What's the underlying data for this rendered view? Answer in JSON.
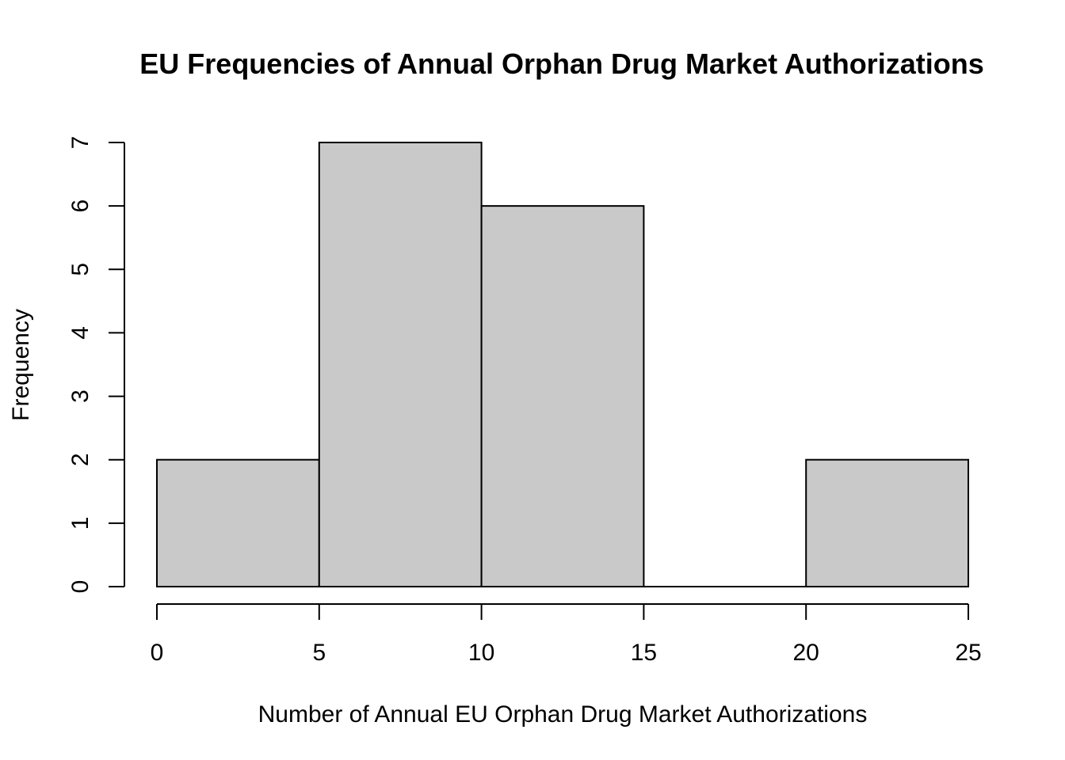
{
  "chart_data": {
    "type": "bar",
    "title": "EU Frequencies of Annual Orphan Drug Market Authorizations",
    "xlabel": "Number of Annual EU Orphan Drug Market Authorizations",
    "ylabel": "Frequency",
    "bins": [
      {
        "start": 0,
        "end": 5,
        "value": 2
      },
      {
        "start": 5,
        "end": 10,
        "value": 7
      },
      {
        "start": 10,
        "end": 15,
        "value": 6
      },
      {
        "start": 15,
        "end": 20,
        "value": 0
      },
      {
        "start": 20,
        "end": 25,
        "value": 2
      }
    ],
    "xlim": [
      0,
      25
    ],
    "ylim": [
      0,
      7
    ],
    "x_ticks": [
      "0",
      "5",
      "10",
      "15",
      "20",
      "25"
    ],
    "y_ticks": [
      "0",
      "1",
      "2",
      "3",
      "4",
      "5",
      "6",
      "7"
    ],
    "bar_color": "#c9c9c9",
    "grid": false
  }
}
